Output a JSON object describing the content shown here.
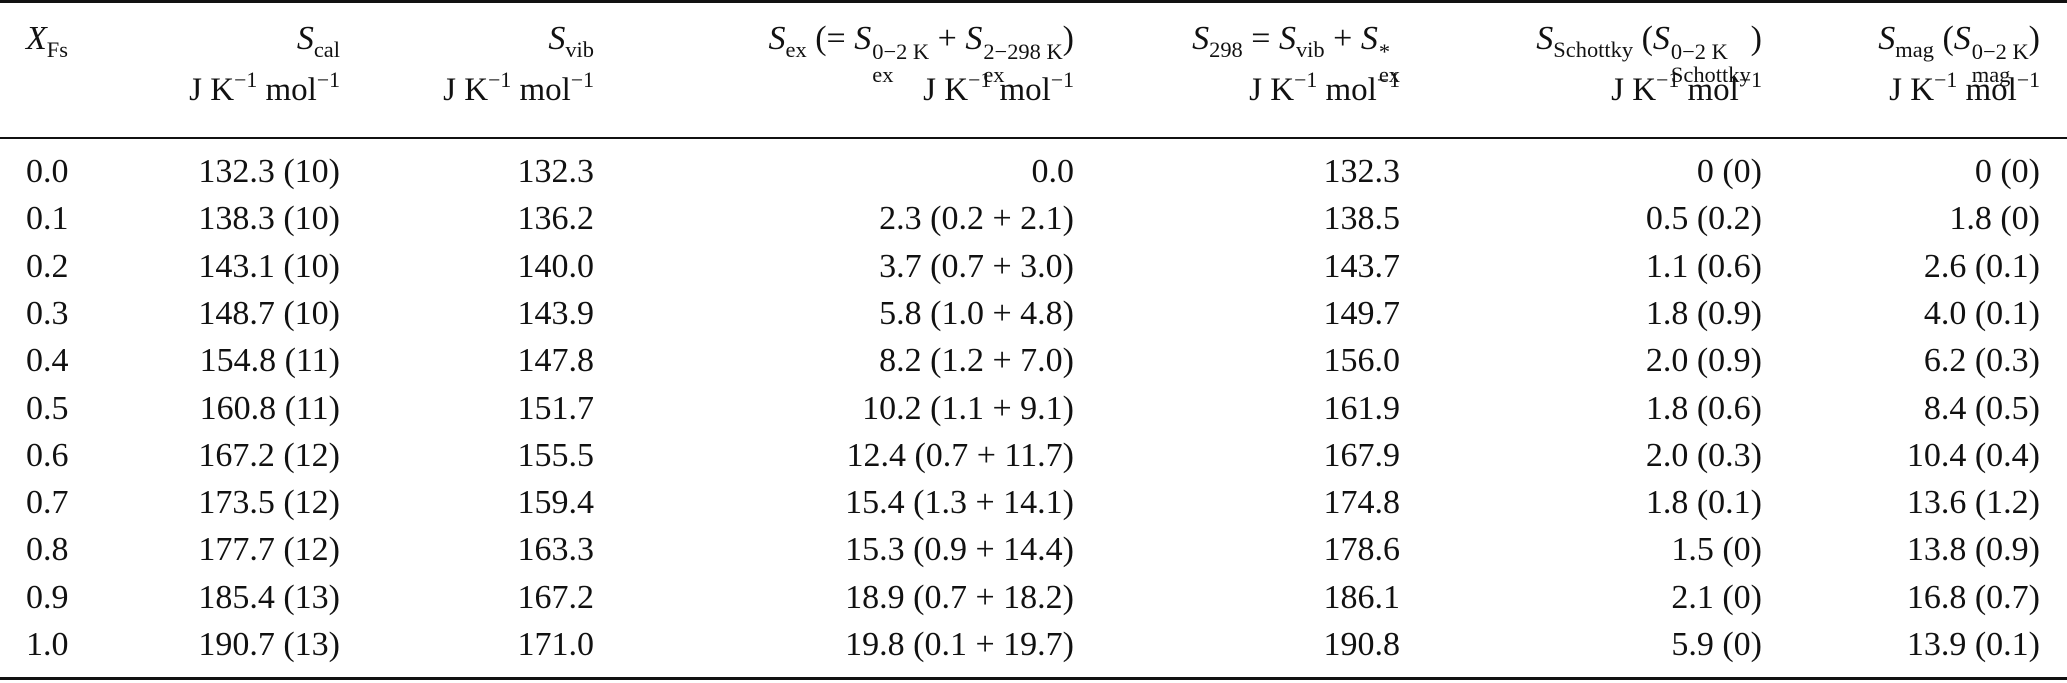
{
  "table": {
    "columns": [
      {
        "key": "xfs",
        "sym": "X",
        "sub": "Fs",
        "unit": ""
      },
      {
        "key": "scal",
        "sym": "S",
        "sub": "cal",
        "unit": "J K−1 mol−1"
      },
      {
        "key": "svib",
        "sym": "S",
        "sub": "vib",
        "unit": "J K−1 mol−1"
      },
      {
        "key": "sex",
        "sym": "S",
        "sub": "ex",
        "expr": "(= S_ex^{0−2 K} + S_ex^{2−298 K})",
        "unit": "J K−1 mol−1"
      },
      {
        "key": "s298",
        "sym": "S",
        "sub": "298",
        "expr": "= S_vib + S*_ex",
        "unit": "J K−1 mol−1"
      },
      {
        "key": "sschottky",
        "sym": "S",
        "sub": "Schottky",
        "expr": "(S_Schottky^{0−2 K})",
        "unit": "J K−1 mol−1"
      },
      {
        "key": "smag",
        "sym": "S",
        "sub": "mag",
        "expr": "(S_mag^{0−2 K})",
        "unit": "J K−1 mol−1"
      }
    ],
    "rows": [
      [
        "0.0",
        "132.3 (10)",
        "132.3",
        "0.0",
        "132.3",
        "0 (0)",
        "0 (0)"
      ],
      [
        "0.1",
        "138.3 (10)",
        "136.2",
        "2.3 (0.2 + 2.1)",
        "138.5",
        "0.5 (0.2)",
        "1.8 (0)"
      ],
      [
        "0.2",
        "143.1 (10)",
        "140.0",
        "3.7 (0.7 + 3.0)",
        "143.7",
        "1.1 (0.6)",
        "2.6 (0.1)"
      ],
      [
        "0.3",
        "148.7 (10)",
        "143.9",
        "5.8 (1.0 + 4.8)",
        "149.7",
        "1.8 (0.9)",
        "4.0 (0.1)"
      ],
      [
        "0.4",
        "154.8 (11)",
        "147.8",
        "8.2 (1.2 + 7.0)",
        "156.0",
        "2.0 (0.9)",
        "6.2 (0.3)"
      ],
      [
        "0.5",
        "160.8 (11)",
        "151.7",
        "10.2 (1.1 + 9.1)",
        "161.9",
        "1.8 (0.6)",
        "8.4 (0.5)"
      ],
      [
        "0.6",
        "167.2 (12)",
        "155.5",
        "12.4 (0.7 + 11.7)",
        "167.9",
        "2.0 (0.3)",
        "10.4 (0.4)"
      ],
      [
        "0.7",
        "173.5 (12)",
        "159.4",
        "15.4 (1.3 + 14.1)",
        "174.8",
        "1.8 (0.1)",
        "13.6 (1.2)"
      ],
      [
        "0.8",
        "177.7 (12)",
        "163.3",
        "15.3 (0.9 + 14.4)",
        "178.6",
        "1.5 (0)",
        "13.8 (0.9)"
      ],
      [
        "0.9",
        "185.4 (13)",
        "167.2",
        "18.9 (0.7 + 18.2)",
        "186.1",
        "2.1 (0)",
        "16.8 (0.7)"
      ],
      [
        "1.0",
        "190.7 (13)",
        "171.0",
        "19.8 (0.1 + 19.7)",
        "190.8",
        "5.9 (0)",
        "13.9 (0.1)"
      ]
    ]
  }
}
